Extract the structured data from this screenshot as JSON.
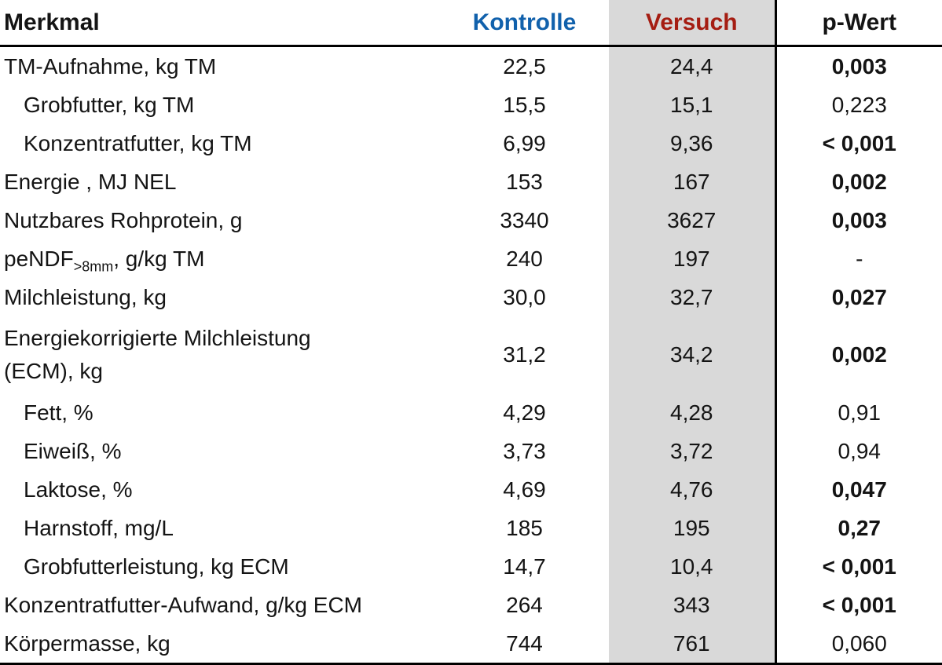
{
  "table": {
    "columns": {
      "merkmal": "Merkmal",
      "kontrolle": "Kontrolle",
      "versuch": "Versuch",
      "p_wert": "p-Wert"
    },
    "colors": {
      "kontrolle_text": "#1161ac",
      "versuch_text": "#a51d12",
      "versuch_column_bg": "#d9d9d9",
      "rule_line": "#000000"
    },
    "rows": [
      {
        "label": "TM-Aufnahme, kg TM",
        "indent": false,
        "tall": false,
        "kontrolle": "22,5",
        "versuch": "24,4",
        "p": "0,003",
        "p_bold": true
      },
      {
        "label": "Grobfutter, kg TM",
        "indent": true,
        "tall": false,
        "kontrolle": "15,5",
        "versuch": "15,1",
        "p": "0,223",
        "p_bold": false
      },
      {
        "label": "Konzentratfutter, kg TM",
        "indent": true,
        "tall": false,
        "kontrolle": "6,99",
        "versuch": "9,36",
        "p": "< 0,001",
        "p_bold": true
      },
      {
        "label": "Energie , MJ NEL",
        "indent": false,
        "tall": false,
        "kontrolle": "153",
        "versuch": "167",
        "p": "0,002",
        "p_bold": true
      },
      {
        "label": "Nutzbares Rohprotein, g",
        "indent": false,
        "tall": false,
        "kontrolle": "3340",
        "versuch": "3627",
        "p": "0,003",
        "p_bold": true
      },
      {
        "label_pre": "peNDF",
        "label_sub": ">8mm",
        "label_post": ", g/kg TM",
        "indent": false,
        "tall": false,
        "kontrolle": "240",
        "versuch": "197",
        "p": "-",
        "p_bold": false
      },
      {
        "label": "Milchleistung, kg",
        "indent": false,
        "tall": false,
        "kontrolle": "30,0",
        "versuch": "32,7",
        "p": "0,027",
        "p_bold": true
      },
      {
        "label": "Energiekorrigierte Milchleistung\n(ECM), kg",
        "indent": false,
        "tall": true,
        "kontrolle": "31,2",
        "versuch": "34,2",
        "p": "0,002",
        "p_bold": true
      },
      {
        "label": "Fett, %",
        "indent": true,
        "tall": false,
        "kontrolle": "4,29",
        "versuch": "4,28",
        "p": "0,91",
        "p_bold": false
      },
      {
        "label": "Eiweiß, %",
        "indent": true,
        "tall": false,
        "kontrolle": "3,73",
        "versuch": "3,72",
        "p": "0,94",
        "p_bold": false
      },
      {
        "label": "Laktose, %",
        "indent": true,
        "tall": false,
        "kontrolle": "4,69",
        "versuch": "4,76",
        "p": "0,047",
        "p_bold": true
      },
      {
        "label": "Harnstoff, mg/L",
        "indent": true,
        "tall": false,
        "kontrolle": "185",
        "versuch": "195",
        "p": "0,27",
        "p_bold": true
      },
      {
        "label": "Grobfutterleistung, kg ECM",
        "indent": true,
        "tall": false,
        "kontrolle": "14,7",
        "versuch": "10,4",
        "p": "< 0,001",
        "p_bold": true
      },
      {
        "label": "Konzentratfutter-Aufwand, g/kg ECM",
        "indent": false,
        "tall": false,
        "kontrolle": "264",
        "versuch": "343",
        "p": "< 0,001",
        "p_bold": true
      },
      {
        "label": "Körpermasse, kg",
        "indent": false,
        "tall": false,
        "kontrolle": "744",
        "versuch": "761",
        "p": "0,060",
        "p_bold": false
      }
    ]
  },
  "chart_data": {
    "type": "table",
    "title": "",
    "columns": [
      "Merkmal",
      "Kontrolle",
      "Versuch",
      "p-Wert"
    ],
    "rows": [
      [
        "TM-Aufnahme, kg TM",
        "22,5",
        "24,4",
        "0,003"
      ],
      [
        "Grobfutter, kg TM",
        "15,5",
        "15,1",
        "0,223"
      ],
      [
        "Konzentratfutter, kg TM",
        "6,99",
        "9,36",
        "< 0,001"
      ],
      [
        "Energie , MJ NEL",
        "153",
        "167",
        "0,002"
      ],
      [
        "Nutzbares Rohprotein, g",
        "3340",
        "3627",
        "0,003"
      ],
      [
        "peNDF>8mm, g/kg TM",
        "240",
        "197",
        "-"
      ],
      [
        "Milchleistung, kg",
        "30,0",
        "32,7",
        "0,027"
      ],
      [
        "Energiekorrigierte Milchleistung (ECM), kg",
        "31,2",
        "34,2",
        "0,002"
      ],
      [
        "Fett, %",
        "4,29",
        "4,28",
        "0,91"
      ],
      [
        "Eiweiß, %",
        "3,73",
        "3,72",
        "0,94"
      ],
      [
        "Laktose, %",
        "4,69",
        "4,76",
        "0,047"
      ],
      [
        "Harnstoff, mg/L",
        "185",
        "195",
        "0,27"
      ],
      [
        "Grobfutterleistung, kg ECM",
        "14,7",
        "10,4",
        "< 0,001"
      ],
      [
        "Konzentratfutter-Aufwand, g/kg ECM",
        "264",
        "343",
        "< 0,001"
      ],
      [
        "Körpermasse, kg",
        "744",
        "761",
        "0,060"
      ]
    ]
  }
}
